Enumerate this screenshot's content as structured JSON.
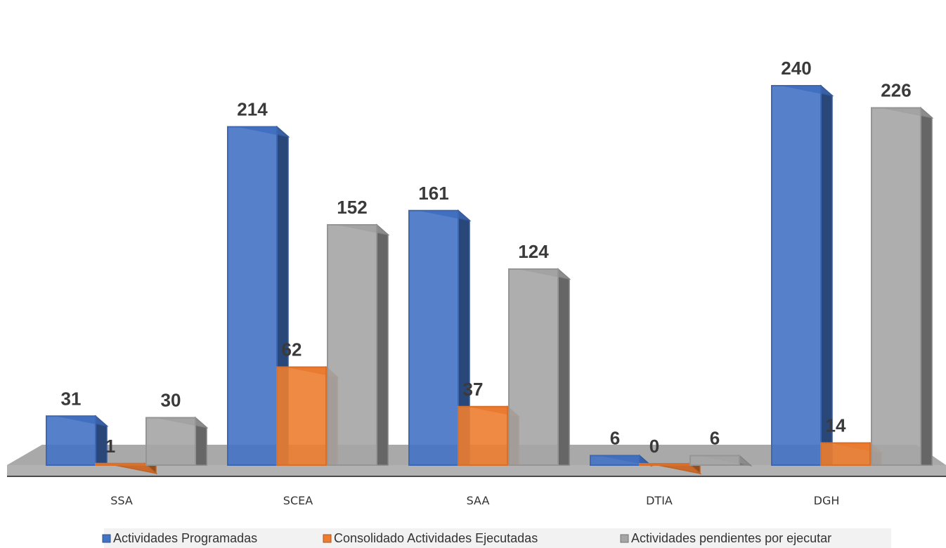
{
  "chart_data": {
    "type": "bar",
    "style": "3d-clustered-column",
    "categories": [
      "SSA",
      "SCEA",
      "SAA",
      "DTIA",
      "DGH"
    ],
    "series": [
      {
        "name": "Actividades Programadas",
        "color": "#4472C4",
        "values": [
          31,
          214,
          161,
          6,
          240
        ]
      },
      {
        "name": "Consolidado Actividades Ejecutadas",
        "color": "#ED7D31",
        "values": [
          1,
          62,
          37,
          0,
          14
        ]
      },
      {
        "name": "Actividades pendientes por ejecutar",
        "color": "#A5A5A5",
        "values": [
          30,
          152,
          124,
          6,
          226
        ]
      }
    ],
    "title": "",
    "xlabel": "",
    "ylabel": "",
    "ylim": [
      0,
      240
    ],
    "grid": false,
    "legend_position": "bottom",
    "data_labels": true
  }
}
